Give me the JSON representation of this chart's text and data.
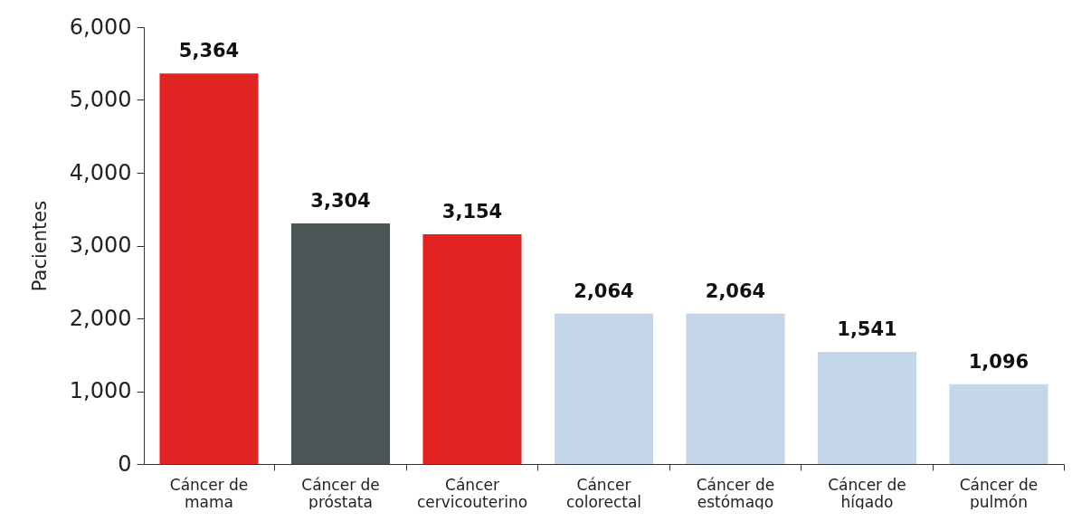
{
  "chart_data": {
    "type": "bar",
    "ylabel": "Pacientes",
    "categories": [
      "Cáncer de mama",
      "Cáncer de próstata",
      "Cáncer cervicouterino",
      "Cáncer colorectal",
      "Cáncer de estómago",
      "Cáncer de hígado",
      "Cáncer de pulmón"
    ],
    "values": [
      5364,
      3304,
      3154,
      2064,
      2064,
      1541,
      1096
    ],
    "value_labels": [
      "5,364",
      "3,304",
      "3,154",
      "2,064",
      "2,064",
      "1,541",
      "1,096"
    ],
    "colors": [
      "#e12421",
      "#4c5555",
      "#e12421",
      "#c6d6ea",
      "#c6d6ea",
      "#c6d6ea",
      "#c6d6ea"
    ],
    "ylim": [
      0,
      6000
    ],
    "yticks": [
      0,
      {
        "value": 1000,
        "label": "1,000"
      },
      {
        "value": 2000,
        "label": "2,000"
      },
      {
        "value": 3000,
        "label": "3,000"
      },
      {
        "value": 4000,
        "label": "4,000"
      },
      {
        "value": 5000,
        "label": "5,000"
      },
      {
        "value": 6000,
        "label": "6,000"
      }
    ],
    "grid": false
  }
}
